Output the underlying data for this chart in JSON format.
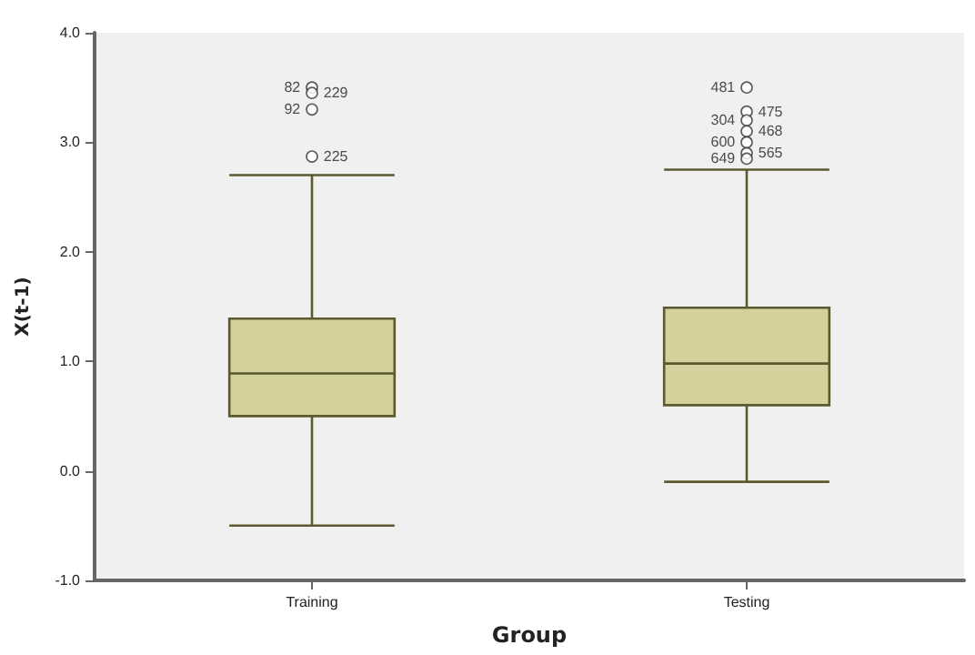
{
  "chart_data": {
    "type": "box",
    "xlabel": "Group",
    "ylabel": "X(t-1)",
    "categories": [
      "Training",
      "Testing"
    ],
    "series": [
      {
        "color": "#d4d19c",
        "boxes": [
          {
            "low": -0.5,
            "q1": 0.5,
            "median": 0.89,
            "q3": 1.39,
            "high": 2.7,
            "outliers": [
              3.5,
              3.45,
              3.3,
              2.87
            ]
          },
          {
            "low": -0.1,
            "q1": 0.6,
            "median": 0.98,
            "q3": 1.49,
            "high": 2.75,
            "outliers": [
              3.5,
              3.28,
              3.2,
              3.1,
              3.0,
              2.9,
              2.85
            ]
          }
        ]
      }
    ],
    "ylim": [
      -1,
      4
    ],
    "yticks": [
      {
        "value": -1,
        "label": "-1.0"
      },
      {
        "value": 0,
        "label": "0.0"
      },
      {
        "value": 1,
        "label": "1.0"
      },
      {
        "value": 2,
        "label": "2.0"
      },
      {
        "value": 3,
        "label": "3.0"
      },
      {
        "value": 4,
        "label": "4.0"
      }
    ],
    "grid": false,
    "annotations": [
      "82",
      "229",
      "92",
      "225",
      "481",
      "475",
      "304",
      "468",
      "600",
      "565",
      "649"
    ]
  }
}
